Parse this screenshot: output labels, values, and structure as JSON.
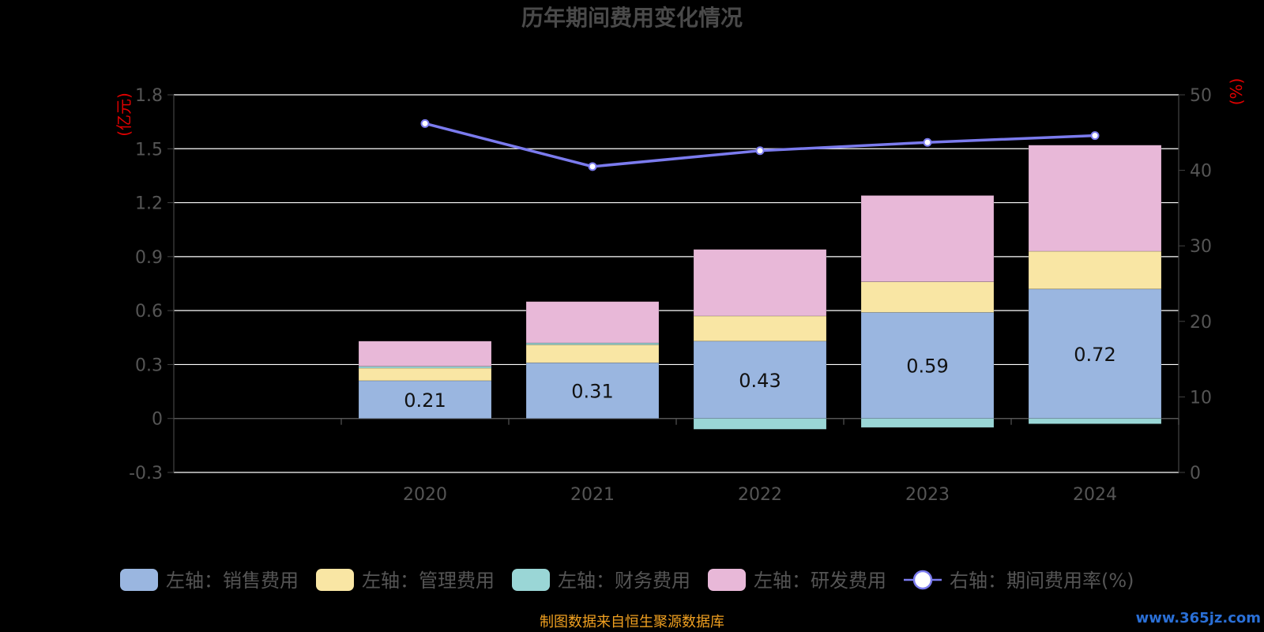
{
  "chart_data": {
    "type": "bar",
    "title": "历年期间费用变化情况",
    "categories": [
      "2020",
      "2021",
      "2022",
      "2023",
      "2024"
    ],
    "left_axis": {
      "unit": "(亿元)",
      "min": -0.3,
      "max": 1.8,
      "ticks": [
        -0.3,
        0,
        0.3,
        0.6,
        0.9,
        1.2,
        1.5,
        1.8
      ],
      "tick_labels": [
        "-0.3",
        "0",
        "0.3",
        "0.6",
        "0.9",
        "1.2",
        "1.5",
        "1.8"
      ]
    },
    "right_axis": {
      "unit": "(%)",
      "min": 0,
      "max": 50,
      "ticks": [
        0,
        10,
        20,
        30,
        40,
        50
      ],
      "tick_labels": [
        "0",
        "10",
        "20",
        "30",
        "40",
        "50"
      ]
    },
    "stacked": true,
    "series": [
      {
        "name": "左轴：销售费用",
        "axis": "left",
        "type": "bar",
        "color": "#9ab6e0",
        "values": [
          0.21,
          0.31,
          0.43,
          0.59,
          0.72
        ],
        "labels": [
          "0.21",
          "0.31",
          "0.43",
          "0.59",
          "0.72"
        ]
      },
      {
        "name": "左轴：管理费用",
        "axis": "left",
        "type": "bar",
        "color": "#f9e6a4",
        "values": [
          0.07,
          0.1,
          0.14,
          0.17,
          0.21
        ]
      },
      {
        "name": "左轴：财务费用",
        "axis": "left",
        "type": "bar",
        "color": "#9ad6d6",
        "values": [
          0.01,
          0.01,
          -0.06,
          -0.05,
          -0.03
        ]
      },
      {
        "name": "左轴：研发费用",
        "axis": "left",
        "type": "bar",
        "color": "#e8b8d8",
        "values": [
          0.14,
          0.23,
          0.37,
          0.48,
          0.59
        ]
      },
      {
        "name": "右轴：期间费用率(%)",
        "axis": "right",
        "type": "line",
        "color": "#7b7bee",
        "values": [
          46.2,
          40.5,
          42.6,
          43.7,
          44.6
        ]
      }
    ],
    "grid": true,
    "legend_position": "bottom"
  },
  "footer": {
    "source_text": "制图数据来自恒生聚源数据库",
    "watermark": "www.365jz.com"
  }
}
